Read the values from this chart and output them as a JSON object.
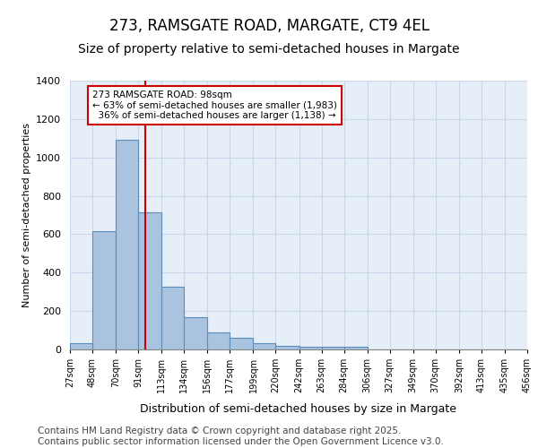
{
  "title_line1": "273, RAMSGATE ROAD, MARGATE, CT9 4EL",
  "title_line2": "Size of property relative to semi-detached houses in Margate",
  "xlabel": "Distribution of semi-detached houses by size in Margate",
  "ylabel": "Number of semi-detached properties",
  "bar_edges": [
    27,
    48,
    70,
    91,
    113,
    134,
    156,
    177,
    199,
    220,
    242,
    263,
    284,
    306,
    327,
    349,
    370,
    392,
    413,
    435,
    456
  ],
  "bar_heights": [
    35,
    615,
    1090,
    715,
    325,
    170,
    90,
    60,
    35,
    20,
    15,
    15,
    15,
    0,
    0,
    0,
    0,
    0,
    0,
    0
  ],
  "bar_color": "#aac4e0",
  "bar_edge_color": "#5b8db8",
  "property_size": 98,
  "red_line_color": "#cc0000",
  "annotation_text": "273 RAMSGATE ROAD: 98sqm\n← 63% of semi-detached houses are smaller (1,983)\n  36% of semi-detached houses are larger (1,138) →",
  "annotation_box_color": "white",
  "annotation_box_edge_color": "#cc0000",
  "ylim": [
    0,
    1400
  ],
  "yticks": [
    0,
    200,
    400,
    600,
    800,
    1000,
    1200,
    1400
  ],
  "tick_labels": [
    "27sqm",
    "48sqm",
    "70sqm",
    "91sqm",
    "113sqm",
    "134sqm",
    "156sqm",
    "177sqm",
    "199sqm",
    "220sqm",
    "242sqm",
    "263sqm",
    "284sqm",
    "306sqm",
    "327sqm",
    "349sqm",
    "370sqm",
    "392sqm",
    "413sqm",
    "435sqm",
    "456sqm"
  ],
  "grid_color": "#c8d8ea",
  "background_color": "#e6eef8",
  "footer_text": "Contains HM Land Registry data © Crown copyright and database right 2025.\nContains public sector information licensed under the Open Government Licence v3.0.",
  "title_fontsize": 12,
  "subtitle_fontsize": 10,
  "footer_fontsize": 7.5,
  "ylabel_fontsize": 8,
  "xlabel_fontsize": 9
}
